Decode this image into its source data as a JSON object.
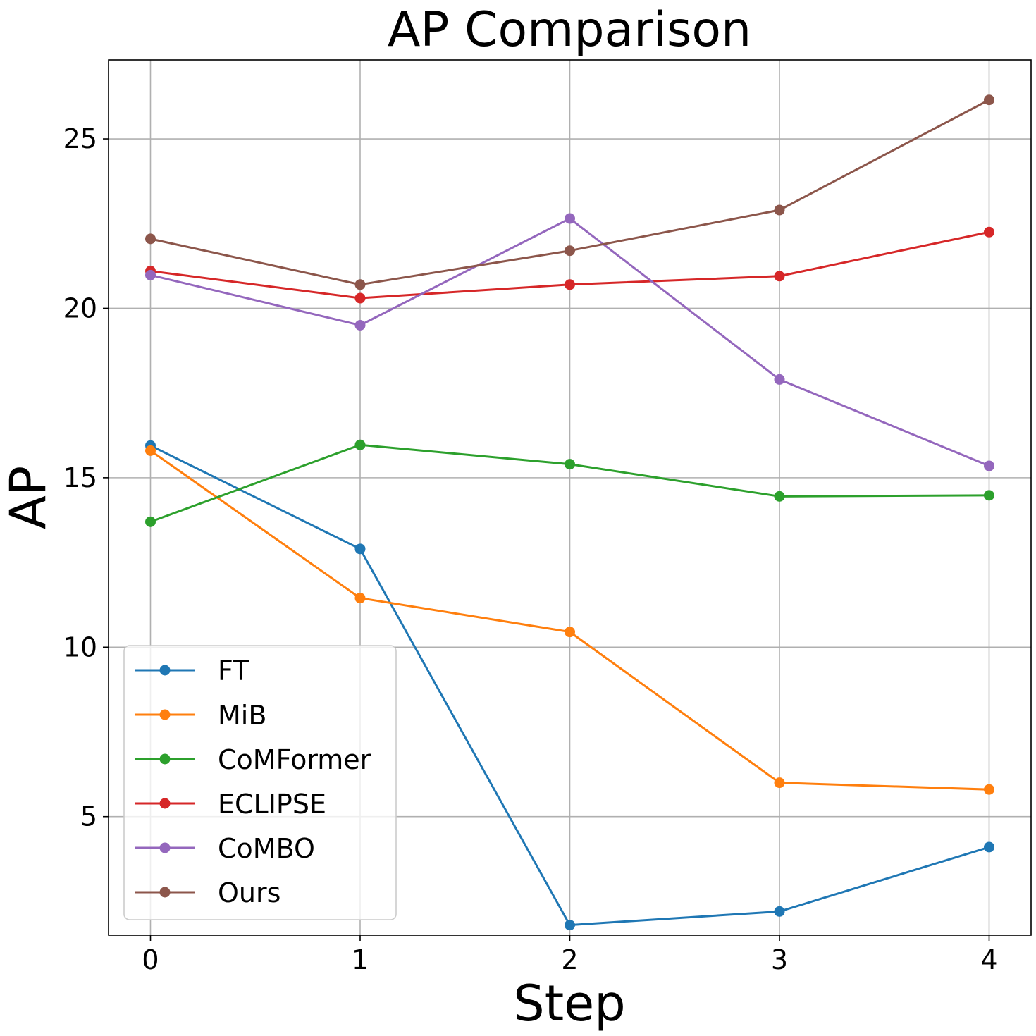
{
  "chart_data": {
    "type": "line",
    "title": "AP Comparison",
    "xlabel": "Step",
    "ylabel": "AP",
    "x": [
      0,
      1,
      2,
      3,
      4
    ],
    "xlim": [
      -0.2,
      4.2
    ],
    "ylim": [
      1.5,
      27.33
    ],
    "xticks": [
      "0",
      "1",
      "2",
      "3",
      "4"
    ],
    "yticks": [
      {
        "value": 5,
        "label": "5"
      },
      {
        "value": 10,
        "label": "10"
      },
      {
        "value": 15,
        "label": "15"
      },
      {
        "value": 20,
        "label": "20"
      },
      {
        "value": 25,
        "label": "25"
      }
    ],
    "grid": true,
    "legend_position": "lower-left",
    "series": [
      {
        "name": "FT",
        "color": "#1f77b4",
        "values": [
          15.95,
          12.9,
          1.8,
          2.2,
          4.1
        ]
      },
      {
        "name": "MiB",
        "color": "#ff7f0e",
        "values": [
          15.8,
          11.45,
          10.45,
          6.0,
          5.8
        ]
      },
      {
        "name": "CoMFormer",
        "color": "#2ca02c",
        "values": [
          13.7,
          15.97,
          15.4,
          14.45,
          14.48
        ]
      },
      {
        "name": "ECLIPSE",
        "color": "#d62728",
        "values": [
          21.1,
          20.3,
          20.7,
          20.95,
          22.25
        ]
      },
      {
        "name": "CoMBO",
        "color": "#9467bd",
        "values": [
          20.98,
          19.5,
          22.65,
          17.9,
          15.35
        ]
      },
      {
        "name": "Ours",
        "color": "#8c564b",
        "values": [
          22.05,
          20.7,
          21.7,
          22.9,
          26.15
        ]
      }
    ]
  }
}
